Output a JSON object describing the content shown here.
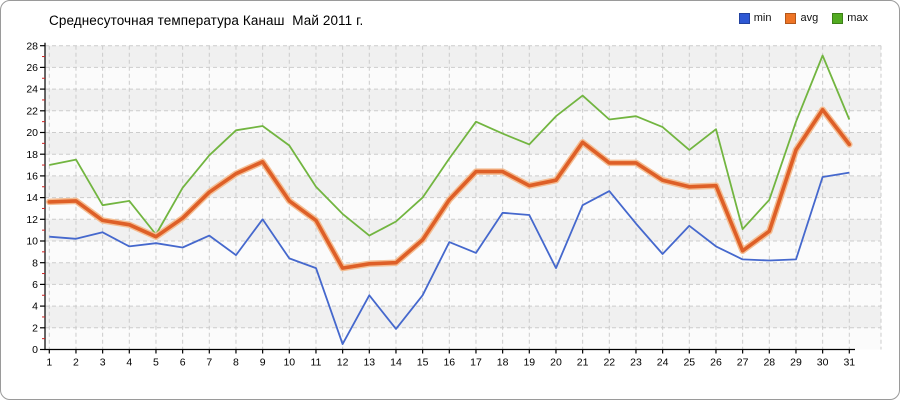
{
  "title": "Среднесуточная температура Канаш  Май 2011 г.",
  "chart_data": {
    "type": "line",
    "title": "Среднесуточная температура Канаш  Май 2011 г.",
    "categories": [
      1,
      2,
      3,
      4,
      5,
      6,
      7,
      8,
      9,
      10,
      11,
      12,
      13,
      14,
      15,
      16,
      17,
      18,
      19,
      20,
      21,
      22,
      23,
      24,
      25,
      26,
      27,
      28,
      29,
      30,
      31
    ],
    "xlabel": "",
    "ylabel": "",
    "ylim": [
      0,
      28
    ],
    "y_ticks": [
      0,
      2,
      4,
      6,
      8,
      10,
      12,
      14,
      16,
      18,
      20,
      22,
      24,
      26,
      28
    ],
    "grid": true,
    "legend_position": "top-right",
    "series": [
      {
        "name": "min",
        "swatch_color": "#2e58d4",
        "line_color": "#4568cd",
        "values": [
          10.4,
          10.2,
          10.8,
          9.5,
          9.8,
          9.4,
          10.5,
          8.7,
          12.0,
          8.4,
          7.5,
          0.5,
          5.0,
          1.9,
          5.0,
          9.9,
          8.9,
          12.6,
          12.4,
          7.5,
          13.3,
          14.6,
          11.6,
          8.8,
          11.4,
          9.5,
          8.3,
          8.2,
          8.3,
          15.9,
          16.3
        ]
      },
      {
        "name": "avg",
        "swatch_color": "#ee7425",
        "line_color": "#de5f27",
        "halo_color": "#f4bd92",
        "values": [
          13.6,
          13.7,
          11.9,
          11.5,
          10.4,
          12.1,
          14.5,
          16.2,
          17.3,
          13.7,
          11.9,
          7.5,
          7.9,
          8.0,
          10.1,
          13.8,
          16.4,
          16.4,
          15.1,
          15.6,
          19.1,
          17.2,
          17.2,
          15.6,
          15.0,
          15.1,
          9.1,
          10.9,
          18.4,
          22.1,
          18.9
        ]
      },
      {
        "name": "max",
        "swatch_color": "#52ab21",
        "line_color": "#72b540",
        "values": [
          17.0,
          17.5,
          13.3,
          13.7,
          10.6,
          14.9,
          17.9,
          20.2,
          20.6,
          18.8,
          15.0,
          12.5,
          10.5,
          11.8,
          14.0,
          17.6,
          21.0,
          19.9,
          18.9,
          21.5,
          23.4,
          21.2,
          21.5,
          20.5,
          18.4,
          20.3,
          11.1,
          13.8,
          21.0,
          27.1,
          21.2
        ]
      }
    ]
  },
  "colors": {
    "background": "#ffffff",
    "frame_border": "#9a9a9a",
    "plot_band_light": "#fbfbfb",
    "plot_band_gray": "#f0f0f0",
    "gridline": "#cccccc",
    "axis": "#000000",
    "minor_tick": "#cc2222",
    "tick_label": "#000000"
  }
}
